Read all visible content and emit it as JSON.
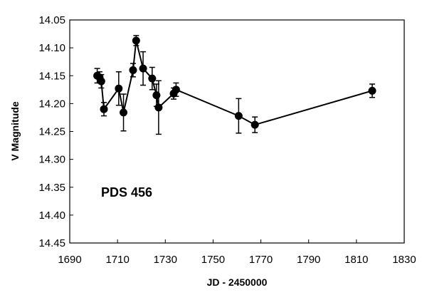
{
  "chart_data": {
    "type": "scatter",
    "xlabel": "JD - 2450000",
    "ylabel": "V Magnitude",
    "annotation": "PDS 456",
    "xlim": [
      1690,
      1830
    ],
    "ylim": [
      14.05,
      14.45
    ],
    "y_inverted": true,
    "x_ticks": [
      1690,
      1710,
      1730,
      1750,
      1770,
      1790,
      1810,
      1830
    ],
    "y_ticks": [
      "14.05",
      "14.10",
      "14.15",
      "14.20",
      "14.25",
      "14.30",
      "14.35",
      "14.40",
      "14.45"
    ],
    "grid": false,
    "legend": "none",
    "connected": true,
    "marker_color": "#000000",
    "series": [
      {
        "x": [
          1701.5,
          1702.5,
          1703.2,
          1704.3,
          1710.5,
          1712.5,
          1716.5,
          1717.8,
          1720.7,
          1724.5,
          1726.3,
          1727.2,
          1733.5,
          1734.5,
          1760.7,
          1767.5,
          1816.6
        ],
        "y": [
          14.15,
          14.153,
          14.16,
          14.21,
          14.173,
          14.216,
          14.14,
          14.087,
          14.137,
          14.155,
          14.185,
          14.207,
          14.182,
          14.175,
          14.222,
          14.238,
          14.177
        ],
        "err": [
          0.013,
          0.01,
          0.012,
          0.012,
          0.03,
          0.033,
          0.012,
          0.009,
          0.03,
          0.02,
          0.02,
          0.048,
          0.01,
          0.012,
          0.031,
          0.014,
          0.012
        ]
      }
    ]
  }
}
